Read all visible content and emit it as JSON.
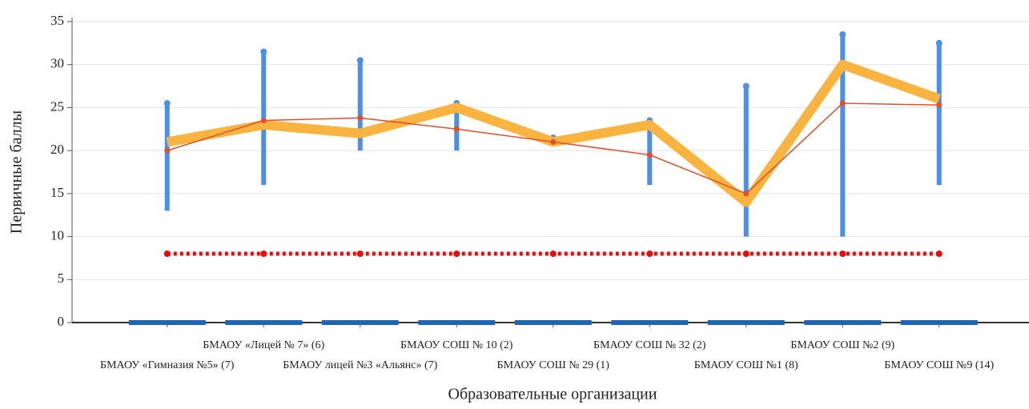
{
  "chart_data": {
    "type": "line",
    "y_label": "Первичные баллы",
    "x_label": "Образовательные организации",
    "categories": [
      "БМАОУ «Гимназия №5» (7)",
      "БМАОУ «Лицей № 7» (6)",
      "БМАОУ лицей №3 «Альянс» (7)",
      "БМАОУ СОШ № 10 (2)",
      "БМАОУ СОШ № 29 (1)",
      "БМАОУ СОШ № 32 (2)",
      "БМАОУ СОШ №1 (8)",
      "БМАОУ СОШ №2 (9)",
      "БМАОУ СОШ №9 (14)"
    ],
    "ylim": [
      0,
      35
    ],
    "yticks": [
      0,
      5,
      10,
      15,
      20,
      25,
      30,
      35
    ],
    "grid": true,
    "ranges": {
      "color": "#4a8fe8",
      "low": [
        13,
        16,
        20,
        20,
        20.5,
        16,
        10,
        10,
        16
      ],
      "high": [
        25.5,
        31.5,
        30.5,
        25.5,
        21.5,
        23.5,
        27.5,
        33.5,
        32.5
      ]
    },
    "series": [
      {
        "color": "#f9b440",
        "style": "thick",
        "values": [
          21,
          23,
          22,
          25,
          21,
          23,
          14,
          30,
          26
        ]
      },
      {
        "color": "#e0502a",
        "style": "thin",
        "values": [
          20,
          23.5,
          23.8,
          22.5,
          21,
          19.5,
          15,
          25.5,
          25.3
        ]
      },
      {
        "color": "#ff0000",
        "style": "dotted",
        "values": [
          8,
          8,
          8,
          8,
          8,
          8,
          8,
          8,
          8
        ]
      },
      {
        "color": "#1f63b8",
        "style": "dash",
        "values": [
          0,
          0,
          0,
          0,
          0,
          0,
          0,
          0,
          0
        ]
      }
    ]
  }
}
